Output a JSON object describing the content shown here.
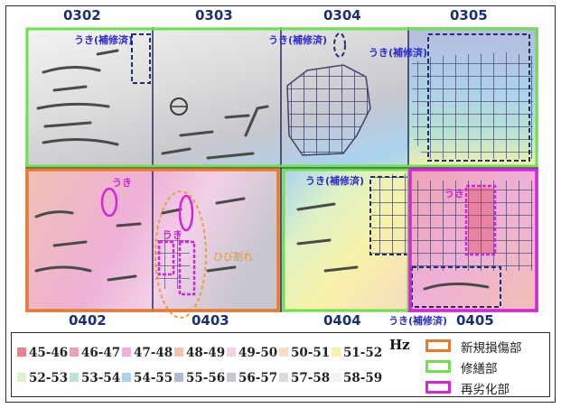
{
  "panels": {
    "top": [
      "0302",
      "0303",
      "0304",
      "0305"
    ],
    "bottom": [
      "0402",
      "0403",
      "0404",
      "0405"
    ]
  },
  "annotations": {
    "p0302": "うき(補修済)",
    "p0304": "うき(補修済)",
    "p0305": "うき(補修済)",
    "p0402": "うき",
    "p0403_uki": "うき",
    "p0403_crack": "ひび割れ",
    "p0404": "うき(補修済)",
    "p0405_uki": "うき",
    "p0405_bottom": "うき(補修済)"
  },
  "legend": {
    "unit": "Hz",
    "ranges": [
      {
        "label": "45-46",
        "color": "#e9808e"
      },
      {
        "label": "46-47",
        "color": "#eda3b3"
      },
      {
        "label": "47-48",
        "color": "#eeb0d6"
      },
      {
        "label": "48-49",
        "color": "#f0c2b3"
      },
      {
        "label": "49-50",
        "color": "#f2d0e8"
      },
      {
        "label": "50-51",
        "color": "#f6dcc0"
      },
      {
        "label": "51-52",
        "color": "#f8f2a8"
      },
      {
        "label": "52-53",
        "color": "#dff2c6"
      },
      {
        "label": "53-54",
        "color": "#b9e6cf"
      },
      {
        "label": "54-55",
        "color": "#a9d3ee"
      },
      {
        "label": "55-56",
        "color": "#b1b7df"
      },
      {
        "label": "56-57",
        "color": "#c7c7cf"
      },
      {
        "label": "57-58",
        "color": "#dcdcdc"
      },
      {
        "label": "58-59",
        "color": "#f3f3f3"
      }
    ],
    "boxes": [
      {
        "label": "新規損傷部",
        "color": "#e87a2e"
      },
      {
        "label": "修繕部",
        "color": "#6fe04e"
      },
      {
        "label": "再劣化部",
        "color": "#d624dc"
      }
    ]
  }
}
